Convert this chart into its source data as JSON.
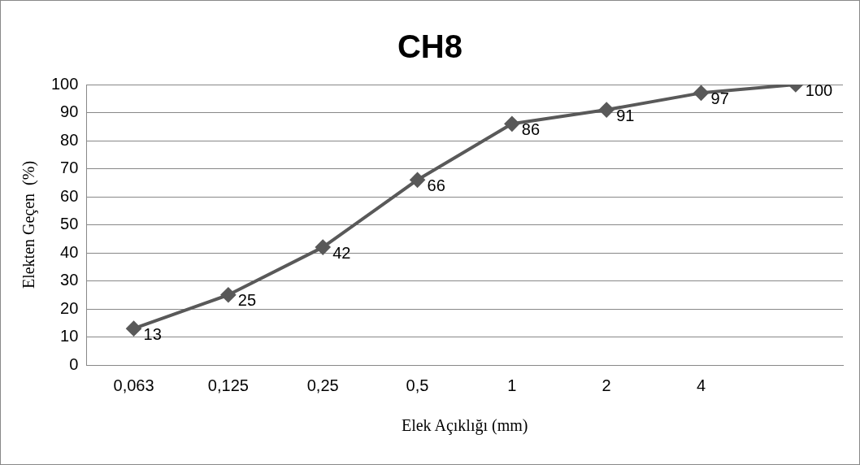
{
  "chart_data": {
    "type": "line",
    "title": "CH8",
    "xlabel": "Elek Açıklığı (mm)",
    "ylabel": "Elekten Geçen  (%)",
    "categories": [
      "0,063",
      "0,125",
      "0,25",
      "0,5",
      "1",
      "2",
      "4",
      null
    ],
    "series": [
      {
        "color": "#595959",
        "values": [
          13,
          25,
          42,
          66,
          86,
          91,
          97,
          100
        ]
      }
    ],
    "ylim": [
      0,
      100
    ],
    "yticks": [
      0,
      10,
      20,
      30,
      40,
      50,
      60,
      70,
      80,
      90,
      100
    ],
    "grid": "y",
    "marker": "diamond",
    "line_style": "solid",
    "data_labels": true,
    "legend": false
  }
}
